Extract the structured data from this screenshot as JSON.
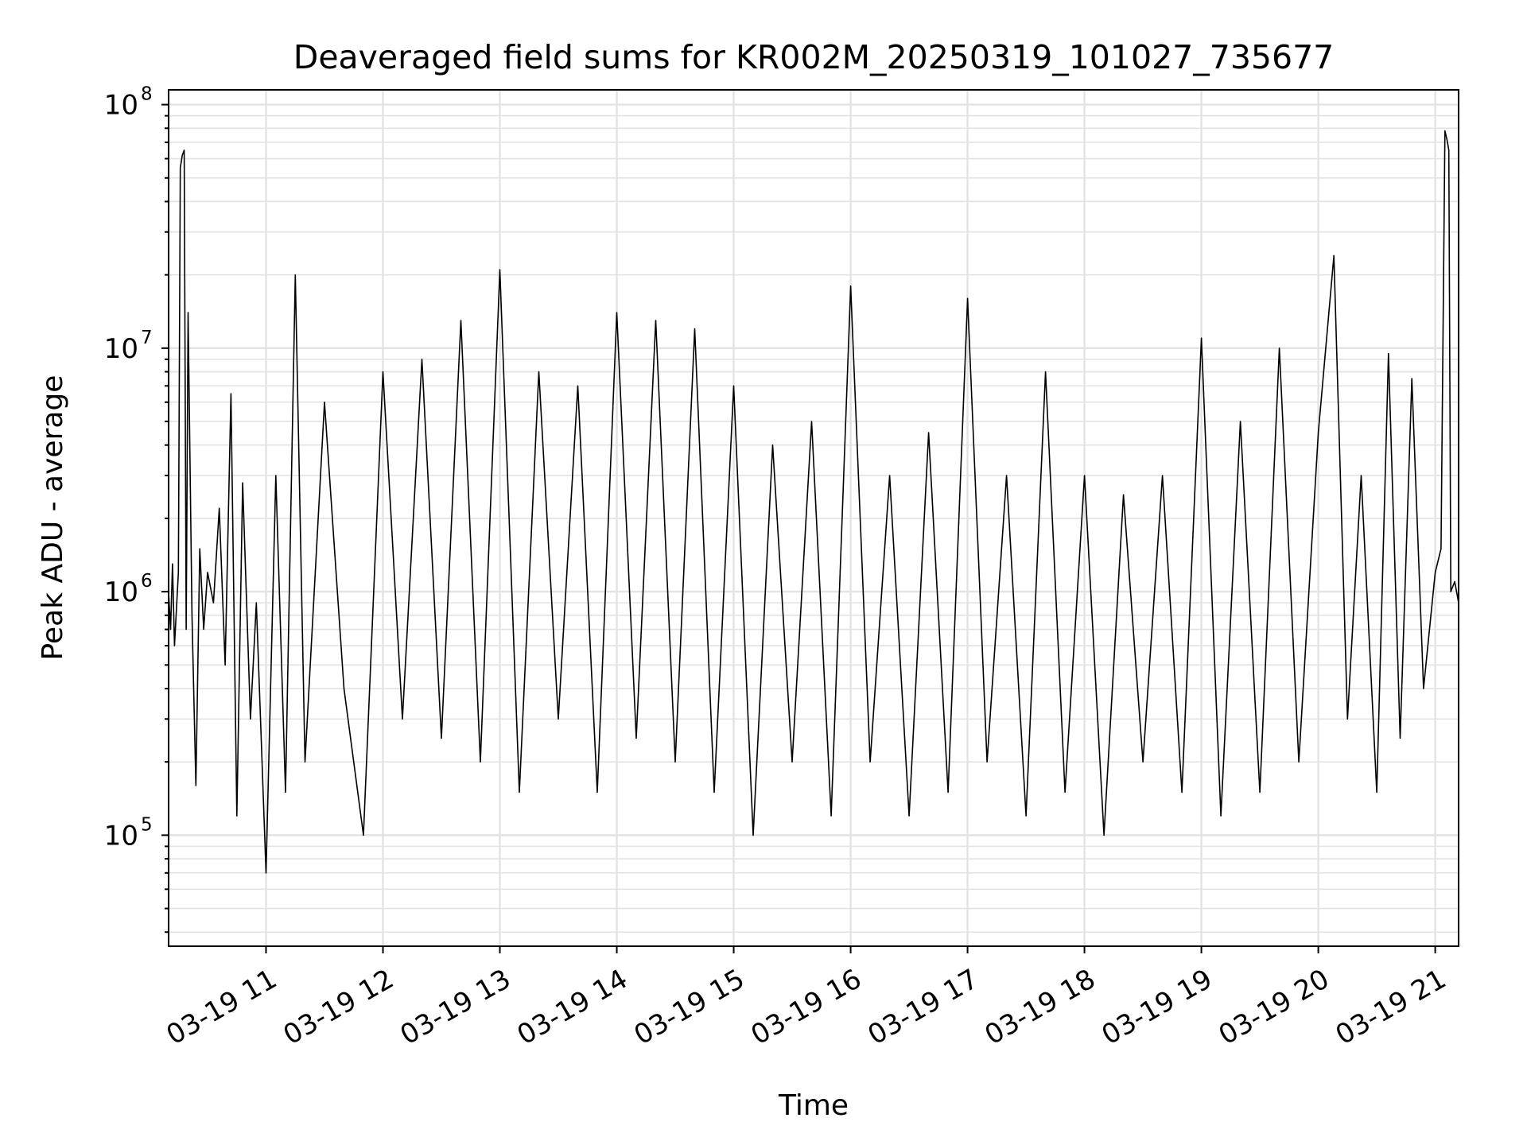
{
  "chart_data": {
    "type": "line",
    "title": "Deaveraged field sums for KR002M_20250319_101027_735677",
    "xlabel": "Time",
    "ylabel": "Peak ADU - average",
    "yscale": "log",
    "ylim": [
      35000,
      115000000
    ],
    "xlim": [
      "2025-03-19 10:10",
      "2025-03-19 21:12"
    ],
    "x_ticks": [
      {
        "x": "2025-03-19 11:00",
        "label": "03-19 11"
      },
      {
        "x": "2025-03-19 12:00",
        "label": "03-19 12"
      },
      {
        "x": "2025-03-19 13:00",
        "label": "03-19 13"
      },
      {
        "x": "2025-03-19 14:00",
        "label": "03-19 14"
      },
      {
        "x": "2025-03-19 15:00",
        "label": "03-19 15"
      },
      {
        "x": "2025-03-19 16:00",
        "label": "03-19 16"
      },
      {
        "x": "2025-03-19 17:00",
        "label": "03-19 17"
      },
      {
        "x": "2025-03-19 18:00",
        "label": "03-19 18"
      },
      {
        "x": "2025-03-19 19:00",
        "label": "03-19 19"
      },
      {
        "x": "2025-03-19 20:00",
        "label": "03-19 20"
      },
      {
        "x": "2025-03-19 21:00",
        "label": "03-19 21"
      }
    ],
    "y_ticks": [
      {
        "value": 100000,
        "base": "10",
        "exp": "5"
      },
      {
        "value": 1000000,
        "base": "10",
        "exp": "6"
      },
      {
        "value": 10000000,
        "base": "10",
        "exp": "7"
      },
      {
        "value": 100000000,
        "base": "10",
        "exp": "8"
      }
    ],
    "grid": true,
    "line_color": "#000000",
    "series": [
      {
        "x": [
          "2025-03-19 10:10",
          "2025-03-19 10:11",
          "2025-03-19 10:12",
          "2025-03-19 10:13",
          "2025-03-19 10:15",
          "2025-03-19 10:16",
          "2025-03-19 10:17",
          "2025-03-19 10:18",
          "2025-03-19 10:19",
          "2025-03-19 10:20",
          "2025-03-19 10:22",
          "2025-03-19 10:24",
          "2025-03-19 10:26",
          "2025-03-19 10:28",
          "2025-03-19 10:30",
          "2025-03-19 10:33",
          "2025-03-19 10:36",
          "2025-03-19 10:39",
          "2025-03-19 10:42",
          "2025-03-19 10:45",
          "2025-03-19 10:48",
          "2025-03-19 10:52",
          "2025-03-19 10:55",
          "2025-03-19 11:00",
          "2025-03-19 11:05",
          "2025-03-19 11:10",
          "2025-03-19 11:15",
          "2025-03-19 11:20",
          "2025-03-19 11:30",
          "2025-03-19 11:40",
          "2025-03-19 11:50",
          "2025-03-19 12:00",
          "2025-03-19 12:10",
          "2025-03-19 12:20",
          "2025-03-19 12:30",
          "2025-03-19 12:40",
          "2025-03-19 12:50",
          "2025-03-19 13:00",
          "2025-03-19 13:10",
          "2025-03-19 13:20",
          "2025-03-19 13:30",
          "2025-03-19 13:40",
          "2025-03-19 13:50",
          "2025-03-19 14:00",
          "2025-03-19 14:10",
          "2025-03-19 14:20",
          "2025-03-19 14:30",
          "2025-03-19 14:40",
          "2025-03-19 14:50",
          "2025-03-19 15:00",
          "2025-03-19 15:10",
          "2025-03-19 15:20",
          "2025-03-19 15:30",
          "2025-03-19 15:40",
          "2025-03-19 15:50",
          "2025-03-19 16:00",
          "2025-03-19 16:10",
          "2025-03-19 16:20",
          "2025-03-19 16:30",
          "2025-03-19 16:40",
          "2025-03-19 16:50",
          "2025-03-19 17:00",
          "2025-03-19 17:10",
          "2025-03-19 17:20",
          "2025-03-19 17:30",
          "2025-03-19 17:40",
          "2025-03-19 17:50",
          "2025-03-19 18:00",
          "2025-03-19 18:10",
          "2025-03-19 18:20",
          "2025-03-19 18:30",
          "2025-03-19 18:40",
          "2025-03-19 18:50",
          "2025-03-19 19:00",
          "2025-03-19 19:10",
          "2025-03-19 19:20",
          "2025-03-19 19:30",
          "2025-03-19 19:40",
          "2025-03-19 19:50",
          "2025-03-19 20:00",
          "2025-03-19 20:08",
          "2025-03-19 20:15",
          "2025-03-19 20:22",
          "2025-03-19 20:30",
          "2025-03-19 20:36",
          "2025-03-19 20:42",
          "2025-03-19 20:48",
          "2025-03-19 20:54",
          "2025-03-19 21:00",
          "2025-03-19 21:03",
          "2025-03-19 21:05",
          "2025-03-19 21:06",
          "2025-03-19 21:07",
          "2025-03-19 21:08",
          "2025-03-19 21:10",
          "2025-03-19 21:12"
        ],
        "y": [
          1000000,
          700000,
          1300000,
          600000,
          1200000,
          55000000,
          62000000,
          65000000,
          700000,
          14000000,
          800000,
          160000,
          1500000,
          700000,
          1200000,
          900000,
          2200000,
          500000,
          6500000,
          120000,
          2800000,
          300000,
          900000,
          70000,
          3000000,
          150000,
          20000000,
          200000,
          6000000,
          400000,
          100000,
          8000000,
          300000,
          9000000,
          250000,
          13000000,
          200000,
          21000000,
          150000,
          8000000,
          300000,
          7000000,
          150000,
          14000000,
          250000,
          13000000,
          200000,
          12000000,
          150000,
          7000000,
          100000,
          4000000,
          200000,
          5000000,
          120000,
          18000000,
          200000,
          3000000,
          120000,
          4500000,
          150000,
          16000000,
          200000,
          3000000,
          120000,
          8000000,
          150000,
          3000000,
          100000,
          2500000,
          200000,
          3000000,
          150000,
          11000000,
          120000,
          5000000,
          150000,
          10000000,
          200000,
          4500000,
          24000000,
          300000,
          3000000,
          150000,
          9500000,
          250000,
          7500000,
          400000,
          1200000,
          1500000,
          78000000,
          72000000,
          65000000,
          1000000,
          1100000,
          900000
        ]
      }
    ]
  }
}
